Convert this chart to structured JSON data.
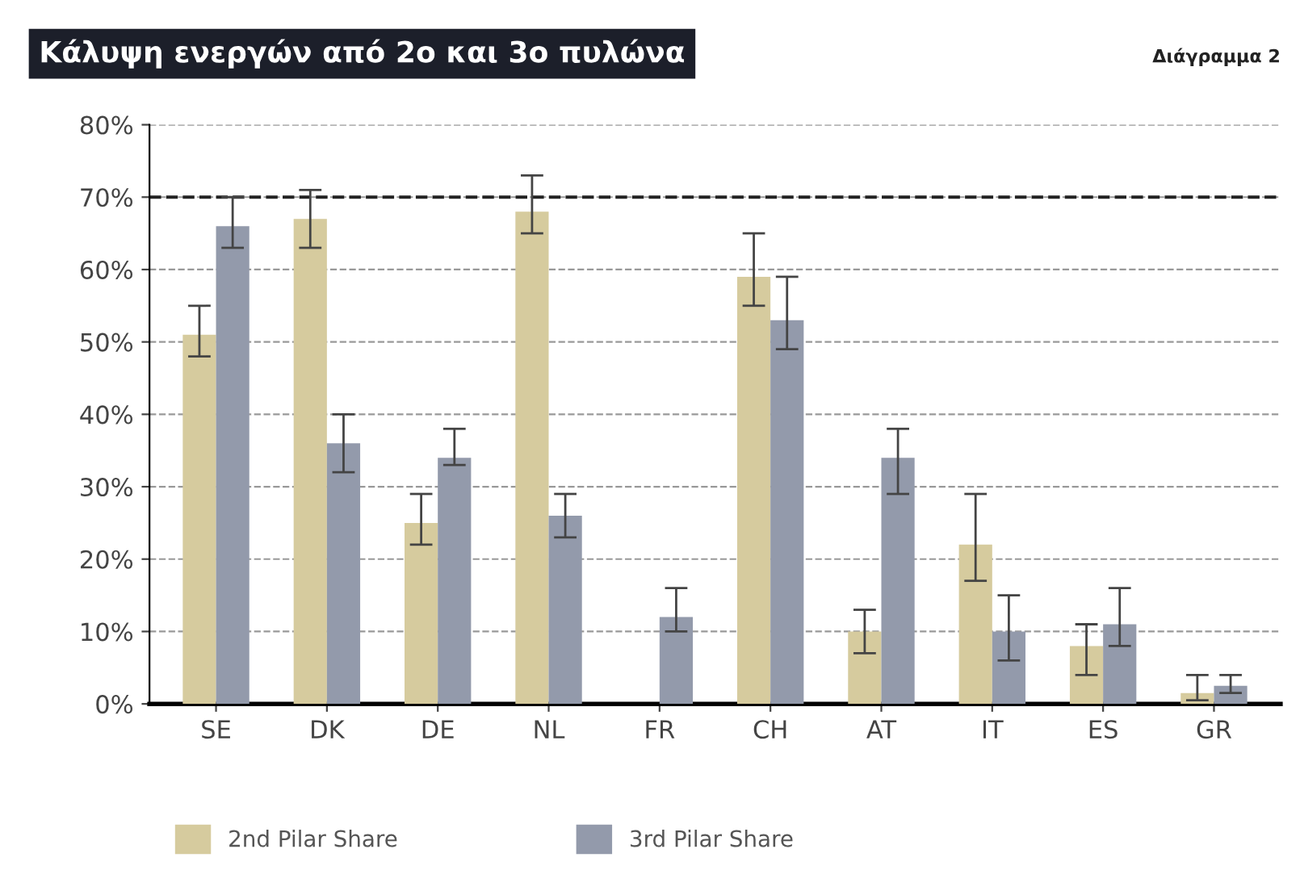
{
  "chart_data": {
    "type": "bar",
    "title": "Κάλυψη ενεργών από 2ο και 3ο πυλώνα",
    "annotations": [
      "Διάγραμμα 2"
    ],
    "categories": [
      "SE",
      "DK",
      "DE",
      "NL",
      "FR",
      "CH",
      "AT",
      "IT",
      "ES",
      "GR"
    ],
    "series": [
      {
        "name": "2nd Pilar Share",
        "color": "#d6cb9e",
        "values": [
          51,
          67,
          25,
          68,
          null,
          59,
          10,
          22,
          8,
          1.5
        ],
        "errors": [
          [
            48,
            55
          ],
          [
            63,
            71
          ],
          [
            22,
            29
          ],
          [
            65,
            73
          ],
          null,
          [
            55,
            65
          ],
          [
            7,
            13
          ],
          [
            17,
            29
          ],
          [
            4,
            11
          ],
          [
            0.5,
            4
          ]
        ]
      },
      {
        "name": "3rd Pilar Share",
        "color": "#939aab",
        "values": [
          66,
          36,
          34,
          26,
          12,
          53,
          34,
          10,
          11,
          2.5
        ],
        "errors": [
          [
            63,
            70
          ],
          [
            32,
            40
          ],
          [
            33,
            38
          ],
          [
            23,
            29
          ],
          [
            10,
            16
          ],
          [
            49,
            59
          ],
          [
            29,
            38
          ],
          [
            6,
            15
          ],
          [
            8,
            16
          ],
          [
            1.5,
            4
          ]
        ]
      }
    ],
    "ylim": [
      0,
      80
    ],
    "yticks": [
      {
        "value": 0,
        "label": "0%"
      },
      {
        "value": 10,
        "label": "10%"
      },
      {
        "value": 20,
        "label": "20%"
      },
      {
        "value": 30,
        "label": "30%"
      },
      {
        "value": 40,
        "label": "40%"
      },
      {
        "value": 50,
        "label": "50%"
      },
      {
        "value": 60,
        "label": "60%"
      },
      {
        "value": 70,
        "label": "70%"
      },
      {
        "value": 80,
        "label": "80%"
      }
    ],
    "ref_lines": [
      {
        "axis": "y",
        "value": 70,
        "color": "#222222",
        "line_style": "dashed"
      }
    ],
    "grid": "y",
    "legend": "bottom"
  }
}
